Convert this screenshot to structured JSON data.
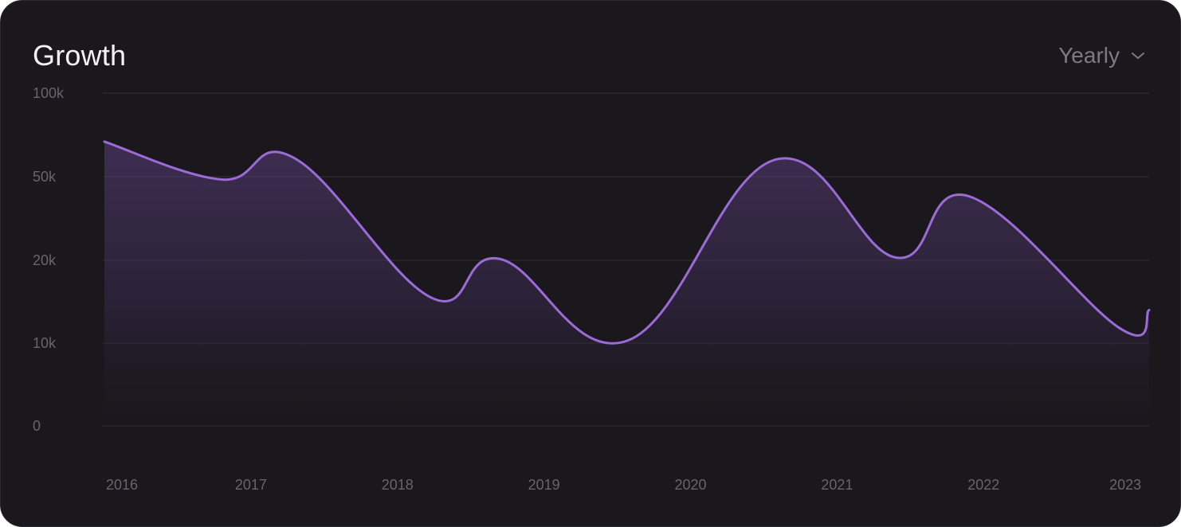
{
  "card": {
    "title": "Growth",
    "period_selector": {
      "selected": "Yearly",
      "icon": "chevron-down-icon"
    }
  },
  "colors": {
    "background": "#1a181d",
    "line": "#9b6bd6",
    "grid": "#2c2932",
    "tick_text": "#67646c",
    "title_text": "#f3f1f5"
  },
  "chart_data": {
    "type": "area",
    "title": "Growth",
    "xlabel": "",
    "ylabel": "",
    "y_scale": "categorical-spaced",
    "y_ticks": [
      {
        "label": "0",
        "value": 0
      },
      {
        "label": "10k",
        "value": 10000
      },
      {
        "label": "20k",
        "value": 20000
      },
      {
        "label": "50k",
        "value": 50000
      },
      {
        "label": "100k",
        "value": 100000
      }
    ],
    "x_ticks": [
      {
        "label": "2016",
        "value": 2016.0
      },
      {
        "label": "2017",
        "value": 2017.0
      },
      {
        "label": "2018",
        "value": 2018.0
      },
      {
        "label": "2019",
        "value": 2019.0
      },
      {
        "label": "2020",
        "value": 2020.0
      },
      {
        "label": "2021",
        "value": 2021.0
      },
      {
        "label": "2022",
        "value": 2022.0
      },
      {
        "label": "2023",
        "value": 2023.0
      }
    ],
    "xlim": [
      2016.0,
      2023.13
    ],
    "grid": true,
    "legend": "none",
    "series": [
      {
        "points": [
          {
            "x": 2016.0,
            "y": 71000
          },
          {
            "x": 2016.8,
            "y": 49000
          },
          {
            "x": 2017.3,
            "y": 61000
          },
          {
            "x": 2018.23,
            "y": 15500
          },
          {
            "x": 2018.7,
            "y": 20500
          },
          {
            "x": 2019.57,
            "y": 10300
          },
          {
            "x": 2020.57,
            "y": 60000
          },
          {
            "x": 2021.4,
            "y": 21000
          },
          {
            "x": 2021.9,
            "y": 43000
          },
          {
            "x": 2022.93,
            "y": 11800
          },
          {
            "x": 2023.13,
            "y": 14000
          }
        ]
      }
    ]
  }
}
